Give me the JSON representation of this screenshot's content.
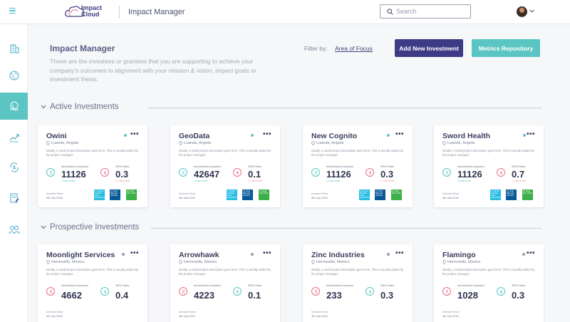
{
  "header": {
    "logo_text": "Impact",
    "logo_text2": "Cloud",
    "app_title": "Impact Manager",
    "search_placeholder": "Search"
  },
  "sidebar": {
    "items": [
      {
        "name": "buildings-icon"
      },
      {
        "name": "globe-icon"
      },
      {
        "name": "world-hand-icon",
        "active": true
      },
      {
        "name": "trend-chart-icon"
      },
      {
        "name": "dollar-cycle-icon"
      },
      {
        "name": "document-edit-icon"
      },
      {
        "name": "people-icon"
      }
    ]
  },
  "page": {
    "title": "Impact Manager",
    "description": "These are the investees or grantees that you are supporting to achieve your company's outcomes in alignment with your mission & vision, impact goals or investment thesis.",
    "filter_label": "Filter by:",
    "filter_value": "Area of Focus",
    "add_button": "Add New Investment",
    "metrics_button": "Metrics Repository"
  },
  "sections": {
    "active": "Active Investments",
    "prospective": "Prospective Investments"
  },
  "colors": {
    "accent_teal": "#5bc5c3",
    "brand_navy": "#3d3a86",
    "active_dot": "#5bc5c3",
    "prospective_dot": "#9a9db0"
  },
  "active_cards": [
    {
      "name": "Owini",
      "location": "Luanda, Angola",
      "desc": "Ideally, a small project description goes here. This is usually added by the project manager.",
      "beneficiaries_label": "beneficiaries impacted",
      "beneficiaries": "11126",
      "sroi_label": "SROI Ratio",
      "sroi": "0.3",
      "sub1": "12 last month",
      "sub2": "1.1 last month",
      "invested_label": "Invested Since",
      "invested": "4th July 2018"
    },
    {
      "name": "GeoData",
      "location": "Luanda, Angola",
      "desc": "Ideally, a small project description goes here. This is usually added by the project manager.",
      "beneficiaries_label": "beneficiaries impacted",
      "beneficiaries": "42647",
      "sroi_label": "SROI Ratio",
      "sroi": "0.1",
      "sub1": "12 last month",
      "sub2": "1.1 last month",
      "invested_label": "Invested Since",
      "invested": "4th July 2018"
    },
    {
      "name": "New Cognito",
      "location": "Luanda, Angola",
      "desc": "Ideally, a small project description goes here. This is usually added by the project manager.",
      "beneficiaries_label": "beneficiaries impacted",
      "beneficiaries": "11126",
      "sroi_label": "SROI Ratio",
      "sroi": "0.3",
      "sub1": "12 last month",
      "sub2": "1.1 last month",
      "invested_label": "Invested Since",
      "invested": "4th July 2018"
    },
    {
      "name": "Sword Health",
      "location": "Luanda, Angola",
      "desc": "Ideally, a small project description goes here. This is usually added by the project manager.",
      "beneficiaries_label": "beneficiaries impacted",
      "beneficiaries": "11126",
      "sroi_label": "SROI Ratio",
      "sroi": "0.7",
      "sub1": "12 last month",
      "sub2": "1.1 last month",
      "invested_label": "Invested Since",
      "invested": "4th July 2018"
    }
  ],
  "prospective_cards": [
    {
      "name": "Moonlight Services",
      "location": "Hermosillo, Mexico",
      "desc": "Ideally, a small project description goes here. This is usually added by the project manager.",
      "beneficiaries_label": "beneficiaries impacted",
      "beneficiaries": "4662",
      "sroi_label": "SROI Ratio",
      "sroi": "0.4",
      "invested_label": "Invested Since",
      "invested": "4th July 2018"
    },
    {
      "name": "Arrowhawk",
      "location": "Hermosillo, Mexico",
      "desc": "Ideally, a small project description goes here. This is usually added by the project manager.",
      "beneficiaries_label": "beneficiaries impacted",
      "beneficiaries": "4223",
      "sroi_label": "SROI Ratio",
      "sroi": "0.1",
      "invested_label": "Invested Since",
      "invested": "4th July 2018"
    },
    {
      "name": "Zinc Industries",
      "location": "Hermosillo, Mexico",
      "desc": "Ideally, a small project description goes here. This is usually added by the project manager.",
      "beneficiaries_label": "beneficiaries impacted",
      "beneficiaries": "233",
      "sroi_label": "SROI Ratio",
      "sroi": "0.3",
      "invested_label": "Invested Since",
      "invested": "4th July 2018"
    },
    {
      "name": "Flamingo",
      "location": "Hermosillo, Mexico",
      "desc": "Ideally, a small project description goes here. This is usually added by the project manager.",
      "beneficiaries_label": "beneficiaries impacted",
      "beneficiaries": "1028",
      "sroi_label": "SROI Ratio",
      "sroi": "0.3",
      "invested_label": "Invested Since",
      "invested": "4th July 2018"
    }
  ],
  "sdg_badges": [
    {
      "label": "6 CLEAN WATER AND SANITATION",
      "color": "#26bde2"
    },
    {
      "label": "14 LIFE BELOW WATER",
      "color": "#0a5a99"
    },
    {
      "label": "15 LIFE ON LAND",
      "color": "#3eb049"
    }
  ]
}
